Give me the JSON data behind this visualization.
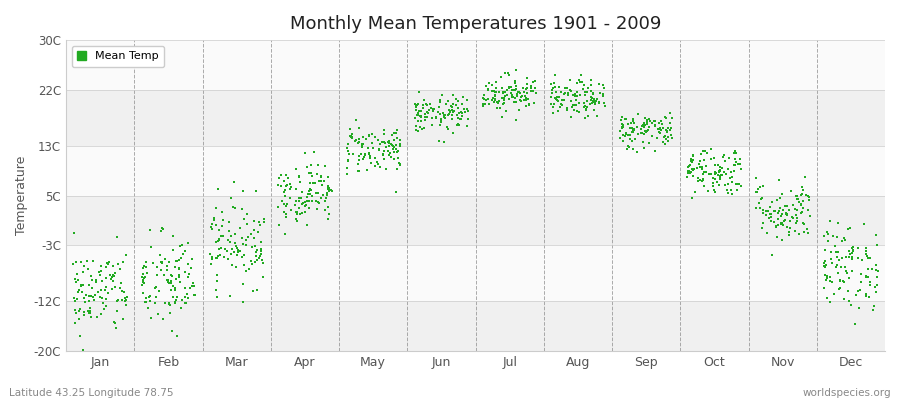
{
  "title": "Monthly Mean Temperatures 1901 - 2009",
  "ylabel": "Temperature",
  "bottom_left": "Latitude 43.25 Longitude 78.75",
  "bottom_right": "worldspecies.org",
  "legend_label": "Mean Temp",
  "dot_color": "#22aa22",
  "dot_size": 3,
  "background_color": "#ffffff",
  "plot_bg_color": "#ffffff",
  "ylim": [
    -20,
    30
  ],
  "yticks": [
    -20,
    -12,
    -3,
    5,
    13,
    22,
    30
  ],
  "ytick_labels": [
    "-20C",
    "-12C",
    "-3C",
    "5C",
    "13C",
    "22C",
    "30C"
  ],
  "months": [
    "Jan",
    "Feb",
    "Mar",
    "Apr",
    "May",
    "Jun",
    "Jul",
    "Aug",
    "Sep",
    "Oct",
    "Nov",
    "Dec"
  ],
  "monthly_mean": [
    -10.5,
    -9.0,
    -2.5,
    5.5,
    12.5,
    18.0,
    21.5,
    20.5,
    15.5,
    9.0,
    2.5,
    -6.5
  ],
  "monthly_std": [
    3.5,
    4.0,
    3.5,
    2.5,
    2.0,
    1.5,
    1.5,
    1.5,
    1.5,
    2.0,
    2.5,
    3.5
  ],
  "n_years": 109,
  "seed": 42,
  "band_colors": [
    "#f0f0f0",
    "#fafafa"
  ],
  "dashed_color": "#888888"
}
